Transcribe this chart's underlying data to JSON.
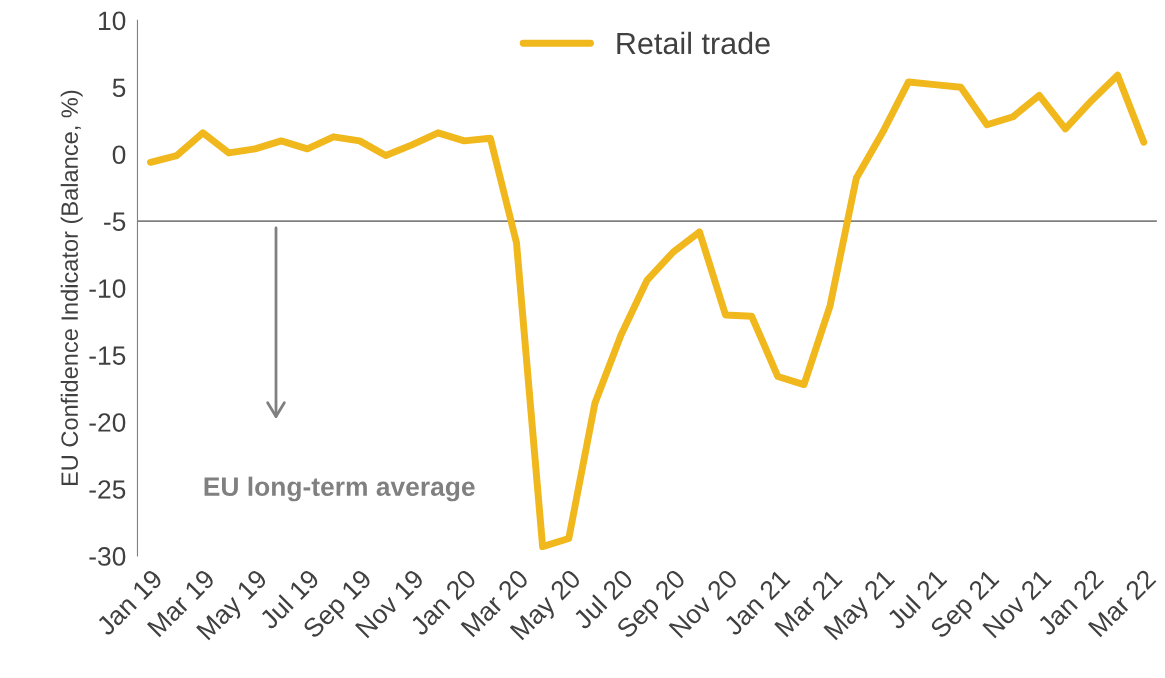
{
  "chart_data": {
    "type": "line",
    "ylabel": "EU Confidence Indicator (Balance, %)",
    "categories": [
      "Jan 19",
      null,
      "Mar 19",
      null,
      "May 19",
      null,
      "Jul 19",
      null,
      "Sep 19",
      null,
      "Nov 19",
      null,
      "Jan 20",
      null,
      "Mar 20",
      null,
      "May 20",
      null,
      "Jul 20",
      null,
      "Sep 20",
      null,
      "Nov 20",
      null,
      "Jan 21",
      null,
      "Mar 21",
      null,
      "May 21",
      null,
      "Jul 21",
      null,
      "Sep 21",
      null,
      "Nov 21",
      null,
      "Jan 22",
      null,
      "Mar 22"
    ],
    "series": [
      {
        "name": "Retail trade",
        "color": "#f0b81c",
        "values": [
          -0.6,
          -0.1,
          1.6,
          0.1,
          0.4,
          1.0,
          0.4,
          1.3,
          1.0,
          -0.1,
          0.7,
          1.6,
          1.0,
          1.2,
          -6.6,
          -29.3,
          -28.7,
          -18.6,
          -13.5,
          -9.4,
          -7.3,
          -5.8,
          -12.0,
          -12.1,
          -16.6,
          -17.2,
          -11.3,
          -1.8,
          1.6,
          5.4,
          5.2,
          5.0,
          2.2,
          2.8,
          4.4,
          1.9,
          4.0,
          5.9,
          0.9
        ]
      }
    ],
    "ylim": [
      -30,
      10
    ],
    "yticks": [
      -30,
      -25,
      -20,
      -15,
      -10,
      -5,
      0,
      5,
      10
    ],
    "ref_lines": [
      {
        "axis": "y",
        "value": -5,
        "label": "EU long-term average",
        "color": "#808080"
      }
    ],
    "legend": "top",
    "grid": false,
    "marker": "none",
    "line_style": "solid"
  }
}
